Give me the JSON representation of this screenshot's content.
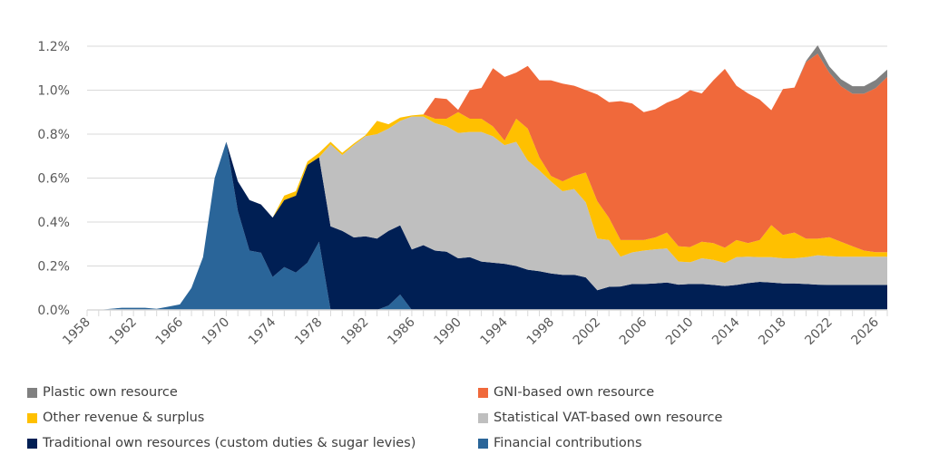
{
  "chart_data": {
    "type": "area",
    "stacked": true,
    "title": "",
    "xlabel": "",
    "ylabel": "",
    "ylim": [
      0,
      1.2
    ],
    "yticks": [
      "0.0%",
      "0.2%",
      "0.4%",
      "0.6%",
      "0.8%",
      "1.0%",
      "1.2%"
    ],
    "ytick_values": [
      0,
      0.2,
      0.4,
      0.6,
      0.8,
      1.0,
      1.2
    ],
    "xlim": [
      1958,
      2027
    ],
    "xtick_labels": [
      "1958",
      "1962",
      "1966",
      "1970",
      "1974",
      "1978",
      "1982",
      "1986",
      "1990",
      "1994",
      "1998",
      "2002",
      "2006",
      "2010",
      "2014",
      "2018",
      "2022",
      "2026"
    ],
    "grid": "horizontal",
    "legend_placement": "bottom",
    "unit": "%",
    "x_start_year": 1958,
    "series": [
      {
        "name": "Financial contributions",
        "color": "#2a6599",
        "values": [
          0,
          0,
          0.005,
          0.01,
          0.01,
          0.01,
          0.005,
          0.015,
          0.025,
          0.1,
          0.24,
          0.6,
          0.765,
          0.45,
          0.27,
          0.26,
          0.15,
          0.195,
          0.17,
          0.215,
          0.31,
          0,
          0,
          0,
          0,
          0,
          0.02,
          0.07,
          0,
          0,
          0,
          0,
          0,
          0,
          0,
          0,
          0,
          0,
          0,
          0,
          0,
          0,
          0,
          0,
          0,
          0,
          0,
          0,
          0,
          0,
          0,
          0,
          0,
          0,
          0,
          0,
          0,
          0,
          0,
          0,
          0,
          0,
          0,
          0,
          0,
          0,
          0,
          0,
          0,
          0
        ]
      },
      {
        "name": "Traditional own resources (custom duties & sugar levies)",
        "color": "#001f54",
        "values": [
          0,
          0,
          0,
          0,
          0,
          0,
          0,
          0,
          0,
          0,
          0,
          0,
          0,
          0.135,
          0.23,
          0.22,
          0.27,
          0.305,
          0.35,
          0.445,
          0.385,
          0.38,
          0.36,
          0.33,
          0.335,
          0.325,
          0.34,
          0.315,
          0.275,
          0.295,
          0.27,
          0.265,
          0.235,
          0.24,
          0.22,
          0.215,
          0.21,
          0.2,
          0.183,
          0.176,
          0.166,
          0.16,
          0.16,
          0.148,
          0.09,
          0.105,
          0.107,
          0.118,
          0.118,
          0.121,
          0.125,
          0.115,
          0.118,
          0.118,
          0.114,
          0.109,
          0.114,
          0.122,
          0.128,
          0.125,
          0.121,
          0.121,
          0.118,
          0.115,
          0.114,
          0.114,
          0.114,
          0.114,
          0.114,
          0.114
        ]
      },
      {
        "name": "Statistical VAT-based own resource",
        "color": "#bfbfbf",
        "values": [
          0,
          0,
          0,
          0,
          0,
          0,
          0,
          0,
          0,
          0,
          0,
          0,
          0,
          0,
          0,
          0,
          0,
          0,
          0,
          0,
          0,
          0.373,
          0.345,
          0.42,
          0.455,
          0.475,
          0.465,
          0.475,
          0.605,
          0.585,
          0.58,
          0.57,
          0.57,
          0.57,
          0.59,
          0.575,
          0.54,
          0.565,
          0.497,
          0.459,
          0.419,
          0.38,
          0.39,
          0.342,
          0.235,
          0.213,
          0.135,
          0.144,
          0.152,
          0.155,
          0.155,
          0.105,
          0.099,
          0.117,
          0.114,
          0.105,
          0.126,
          0.12,
          0.112,
          0.115,
          0.114,
          0.114,
          0.122,
          0.134,
          0.131,
          0.128,
          0.128,
          0.128,
          0.128,
          0.128
        ]
      },
      {
        "name": "Other revenue & surplus",
        "color": "#ffc000",
        "values": [
          0,
          0,
          0,
          0,
          0,
          0,
          0,
          0,
          0,
          0,
          0,
          0,
          0,
          0,
          0,
          0,
          0,
          0.02,
          0.02,
          0.015,
          0.02,
          0.012,
          0.01,
          0.007,
          0.005,
          0.06,
          0.02,
          0.015,
          0.005,
          0.01,
          0.02,
          0.035,
          0.095,
          0.06,
          0.06,
          0.045,
          0.02,
          0.105,
          0.145,
          0.06,
          0.025,
          0.045,
          0.06,
          0.135,
          0.17,
          0.102,
          0.076,
          0.056,
          0.048,
          0.054,
          0.072,
          0.07,
          0.069,
          0.075,
          0.076,
          0.069,
          0.078,
          0.062,
          0.078,
          0.146,
          0.106,
          0.117,
          0.084,
          0.075,
          0.086,
          0.068,
          0.048,
          0.028,
          0.021,
          0.021
        ]
      },
      {
        "name": "GNI-based own resource",
        "color": "#f0693b",
        "values": [
          0,
          0,
          0,
          0,
          0,
          0,
          0,
          0,
          0,
          0,
          0,
          0,
          0,
          0,
          0,
          0,
          0,
          0,
          0,
          0,
          0,
          0,
          0,
          0,
          0,
          0,
          0,
          0,
          0,
          0,
          0.095,
          0.09,
          0.01,
          0.13,
          0.14,
          0.265,
          0.29,
          0.21,
          0.285,
          0.35,
          0.435,
          0.445,
          0.41,
          0.375,
          0.485,
          0.525,
          0.632,
          0.622,
          0.582,
          0.583,
          0.591,
          0.674,
          0.714,
          0.675,
          0.741,
          0.814,
          0.702,
          0.681,
          0.639,
          0.523,
          0.664,
          0.66,
          0.804,
          0.842,
          0.749,
          0.708,
          0.694,
          0.714,
          0.746,
          0.797
        ]
      },
      {
        "name": "Plastic own resource",
        "color": "#808080",
        "values": [
          0,
          0,
          0,
          0,
          0,
          0,
          0,
          0,
          0,
          0,
          0,
          0,
          0,
          0,
          0,
          0,
          0,
          0,
          0,
          0,
          0,
          0,
          0,
          0,
          0,
          0,
          0,
          0,
          0,
          0,
          0,
          0,
          0,
          0,
          0,
          0,
          0,
          0,
          0,
          0,
          0,
          0,
          0,
          0,
          0,
          0,
          0,
          0,
          0,
          0,
          0,
          0,
          0,
          0,
          0,
          0,
          0,
          0,
          0,
          0,
          0,
          0,
          0.005,
          0.038,
          0.028,
          0.032,
          0.034,
          0.034,
          0.037,
          0.034
        ]
      }
    ]
  },
  "legend": [
    {
      "label": "Plastic own resource",
      "color": "#808080"
    },
    {
      "label": "GNI-based own resource",
      "color": "#f0693b"
    },
    {
      "label": "Other revenue & surplus",
      "color": "#ffc000"
    },
    {
      "label": "Statistical VAT-based own resource",
      "color": "#bfbfbf"
    },
    {
      "label": "Traditional own resources (custom duties & sugar levies)",
      "color": "#001f54"
    },
    {
      "label": "Financial contributions",
      "color": "#2a6599"
    }
  ]
}
